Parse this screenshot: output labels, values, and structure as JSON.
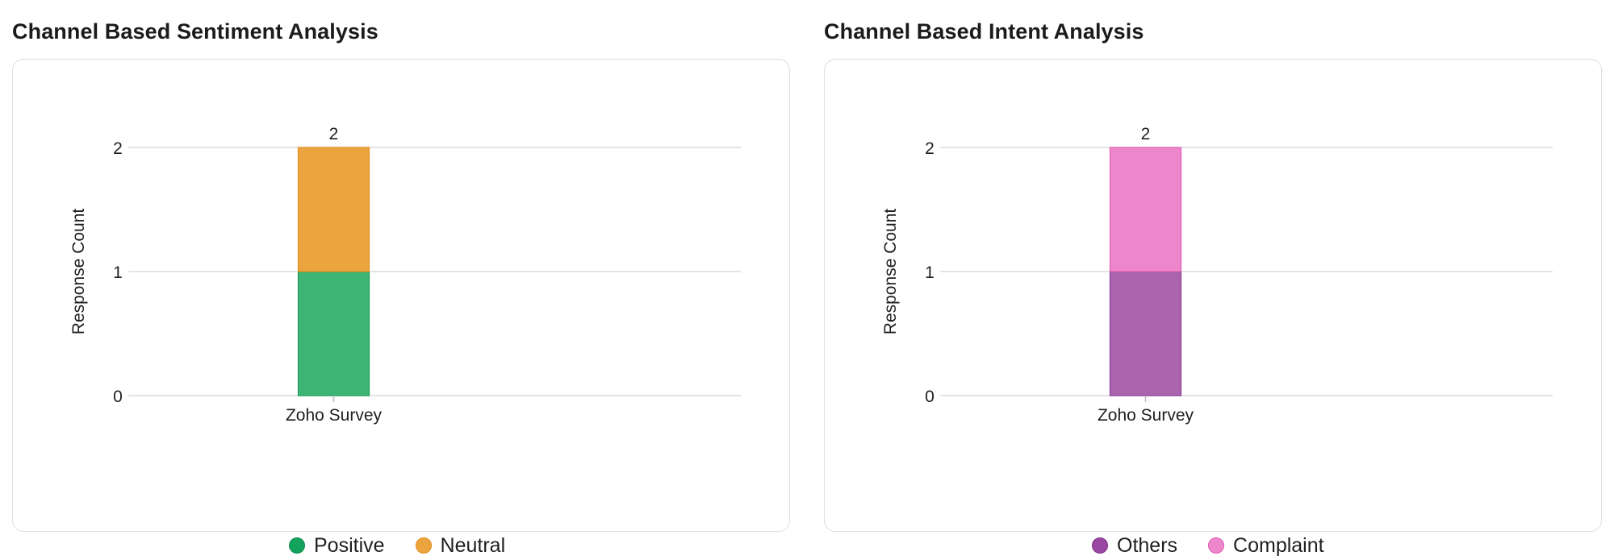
{
  "chart_data": [
    {
      "type": "bar",
      "stacked": true,
      "title": "Channel Based Sentiment Analysis",
      "ylabel": "Response Count",
      "xlabel": "",
      "categories": [
        "Zoho Survey"
      ],
      "ylim": [
        0,
        2
      ],
      "yticks": [
        "0",
        "1",
        "2"
      ],
      "grid": true,
      "legend_position": "bottom",
      "series": [
        {
          "name": "Positive",
          "values": [
            1
          ],
          "color": "#3db374",
          "stroke": "#1e9e5a"
        },
        {
          "name": "Neutral",
          "values": [
            1
          ],
          "color": "#eca43f",
          "stroke": "#e39223"
        }
      ],
      "totals": [
        "2"
      ]
    },
    {
      "type": "bar",
      "stacked": true,
      "title": "Channel Based Intent Analysis",
      "ylabel": "Response Count",
      "xlabel": "",
      "categories": [
        "Zoho Survey"
      ],
      "ylim": [
        0,
        2
      ],
      "yticks": [
        "0",
        "1",
        "2"
      ],
      "grid": true,
      "legend_position": "bottom",
      "series": [
        {
          "name": "Others",
          "values": [
            1
          ],
          "color": "#aa64ae",
          "stroke": "#8f3d96"
        },
        {
          "name": "Complaint",
          "values": [
            1
          ],
          "color": "#ee86cb",
          "stroke": "#df5fb6"
        }
      ],
      "totals": [
        "2"
      ]
    }
  ]
}
